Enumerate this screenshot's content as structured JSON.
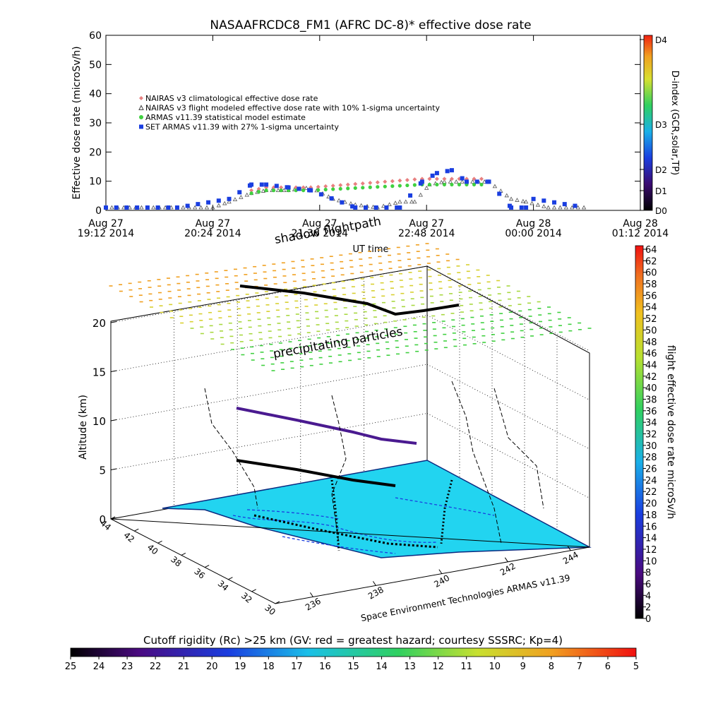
{
  "top_chart": {
    "title": "NASAAFRCDC8_FM1 (AFRC DC-8)* effective dose rate",
    "ylabel": "Effective dose rate (microSv/h)",
    "xlabel": "UT time",
    "y_ticks": [
      "0",
      "10",
      "20",
      "30",
      "40",
      "50",
      "60"
    ],
    "x_ticks": [
      {
        "l1": "Aug 27",
        "l2": "19:12 2014"
      },
      {
        "l1": "Aug 27",
        "l2": "20:24 2014"
      },
      {
        "l1": "Aug 27",
        "l2": "21:36 2014"
      },
      {
        "l1": "Aug 27",
        "l2": "22:48 2014"
      },
      {
        "l1": "Aug 28",
        "l2": "00:00 2014"
      },
      {
        "l1": "Aug 28",
        "l2": "01:12 2014"
      }
    ],
    "legend": [
      {
        "label": "NAIRAS v3 climatological effective dose rate",
        "color": "#e88080"
      },
      {
        "label": "NAIRAS v3 flight modeled effective dose rate with 10% 1-sigma uncertainty",
        "color": "#444444"
      },
      {
        "label": "ARMAS v11.39 statistical model estimate",
        "color": "#40d040"
      },
      {
        "label": "SET ARMAS v11.39 with 27% 1-sigma uncertainty",
        "color": "#1a3ee0"
      }
    ],
    "dindex_label": "D-index (GCR,solar,TP)",
    "dindex_ticks": [
      "D0",
      "D1",
      "D2",
      "D3",
      "D4"
    ]
  },
  "chart_data": [
    {
      "type": "scatter",
      "title": "NASAAFRCDC8_FM1 (AFRC DC-8)* effective dose rate",
      "xlabel": "UT time",
      "ylabel": "Effective dose rate (microSv/h)",
      "x_range": [
        "2014-08-27 19:12",
        "2014-08-28 01:12"
      ],
      "ylim": [
        0,
        60
      ],
      "series": [
        {
          "name": "NAIRAS v3 flight modeled effective dose rate with 10% 1-sigma uncertainty",
          "x": [
            "19:12",
            "19:36",
            "20:00",
            "20:24",
            "20:35",
            "20:50",
            "21:00",
            "21:15",
            "21:30",
            "21:45",
            "22:00",
            "22:15",
            "22:30",
            "22:40",
            "22:50",
            "23:00",
            "23:15",
            "23:30",
            "23:45",
            "23:55",
            "24:10",
            "24:35"
          ],
          "y": [
            0,
            0,
            0,
            0,
            2,
            5,
            6,
            6,
            7,
            3,
            1,
            0,
            2,
            2,
            8,
            9,
            9,
            9,
            3,
            2,
            0,
            0
          ]
        },
        {
          "name": "NAIRAS v3 climatological effective dose rate",
          "x": [
            "20:50",
            "21:00",
            "21:15",
            "21:30",
            "22:45",
            "23:00",
            "23:15",
            "23:30"
          ],
          "y": [
            6,
            7,
            7,
            7,
            10,
            10,
            10,
            10
          ]
        },
        {
          "name": "ARMAS v11.39 statistical model estimate",
          "x": [
            "20:50",
            "21:00",
            "21:15",
            "21:30",
            "22:45",
            "23:00",
            "23:15",
            "23:30"
          ],
          "y": [
            5,
            6,
            6,
            6,
            8,
            8,
            8,
            8
          ]
        },
        {
          "name": "SET ARMAS v11.39 with 27% 1-sigma uncertainty",
          "x": [
            "19:12",
            "20:00",
            "20:35",
            "20:50",
            "21:00",
            "21:15",
            "21:30",
            "22:00",
            "22:30",
            "22:45",
            "22:55",
            "23:05",
            "23:15",
            "23:30",
            "23:45",
            "23:55",
            "24:00",
            "24:35"
          ],
          "y": [
            0,
            0,
            3,
            8,
            8,
            7,
            6,
            0,
            0,
            9,
            12,
            13,
            9,
            9,
            0,
            0,
            3,
            0
          ]
        }
      ]
    },
    {
      "type": "scatter",
      "subtype": "3d",
      "zlabel": "Altitude (km)",
      "z_ticks": [
        "0",
        "5",
        "10",
        "15",
        "20"
      ],
      "lat_ticks": [
        "44",
        "42",
        "40",
        "38",
        "36",
        "34",
        "32",
        "30"
      ],
      "lon_ticks": [
        "236",
        "238",
        "240",
        "242",
        "244"
      ],
      "annotations": [
        "shadow flightpath",
        "precipitating particles"
      ],
      "colorbar_label": "flight effective dose rate microSv/h",
      "colorbar_ticks": [
        "0",
        "2",
        "4",
        "6",
        "8",
        "10",
        "12",
        "14",
        "16",
        "18",
        "20",
        "22",
        "24",
        "26",
        "28",
        "30",
        "32",
        "34",
        "36",
        "38",
        "40",
        "42",
        "44",
        "46",
        "48",
        "50",
        "52",
        "54",
        "56",
        "58",
        "60",
        "62",
        "64"
      ],
      "credit": "Space Environment Technologies ARMAS v11.39"
    }
  ],
  "bottom_bar": {
    "title": "Cutoff rigidity (Rc) >25 km (GV: red = greatest hazard; courtesy SSSRC; Kp=4)",
    "ticks": [
      "25",
      "24",
      "23",
      "22",
      "21",
      "20",
      "19",
      "18",
      "17",
      "16",
      "15",
      "14",
      "13",
      "12",
      "11",
      "10",
      "9",
      "8",
      "7",
      "6",
      "5"
    ]
  }
}
